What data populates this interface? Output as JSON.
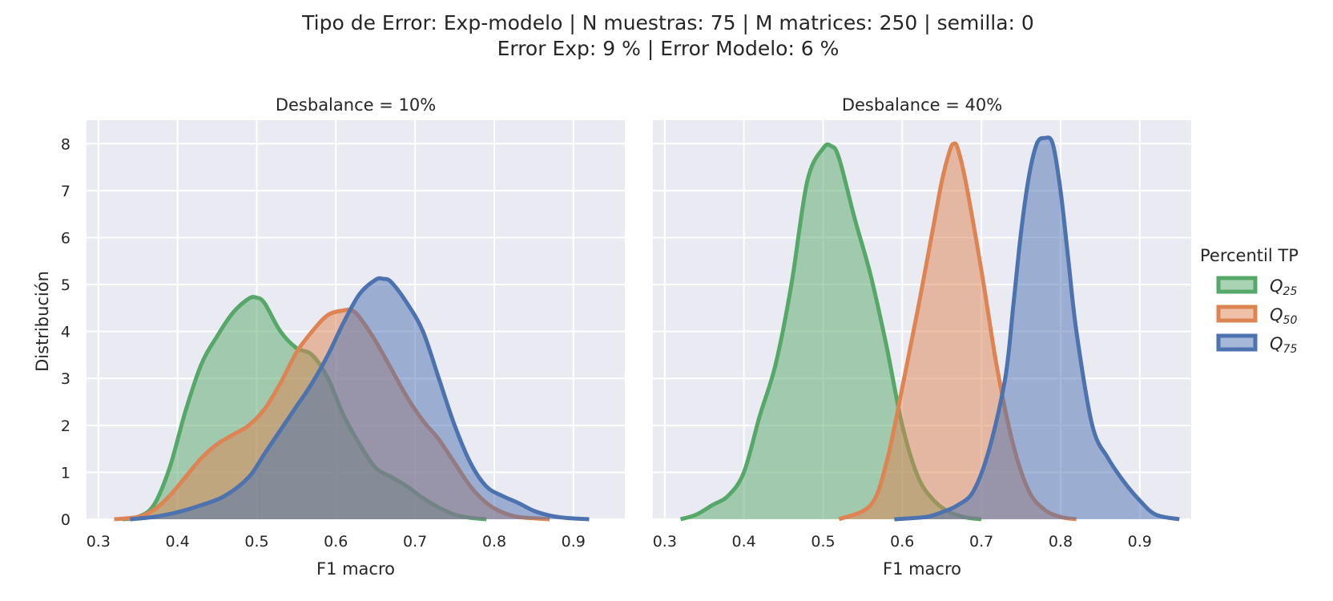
{
  "figure": {
    "title_line1": "Tipo de Error: Exp-modelo | N muestras: 75 | M matrices: 250 | semilla: 0",
    "title_line2": "Error Exp: 9 % | Error Modelo: 6 %"
  },
  "legend": {
    "title": "Percentil TP",
    "entries": [
      {
        "label": "Q",
        "sub": "25",
        "color": "#55a868"
      },
      {
        "label": "Q",
        "sub": "50",
        "color": "#dd8452"
      },
      {
        "label": "Q",
        "sub": "75",
        "color": "#4c72b0"
      }
    ]
  },
  "chart_data": [
    {
      "type": "area",
      "title": "Desbalance = 10%",
      "xlabel": "F1 macro",
      "ylabel": "Distribución",
      "xlim": [
        0.285,
        0.965
      ],
      "ylim": [
        0,
        8.5
      ],
      "xticks": [
        "0.3",
        "0.4",
        "0.5",
        "0.6",
        "0.7",
        "0.8",
        "0.9"
      ],
      "yticks": [
        "0",
        "1",
        "2",
        "3",
        "4",
        "5",
        "6",
        "7",
        "8"
      ],
      "grid": true,
      "series": [
        {
          "name": "Q25",
          "color": "#55a868",
          "x": [
            0.33,
            0.35,
            0.37,
            0.39,
            0.41,
            0.43,
            0.45,
            0.47,
            0.49,
            0.5,
            0.51,
            0.53,
            0.55,
            0.57,
            0.59,
            0.61,
            0.63,
            0.65,
            0.67,
            0.69,
            0.71,
            0.73,
            0.75,
            0.77,
            0.79
          ],
          "y": [
            0.0,
            0.05,
            0.3,
            1.1,
            2.3,
            3.3,
            3.9,
            4.4,
            4.7,
            4.72,
            4.6,
            4.0,
            3.65,
            3.5,
            3.0,
            2.2,
            1.6,
            1.1,
            0.9,
            0.7,
            0.45,
            0.25,
            0.1,
            0.03,
            0.0
          ]
        },
        {
          "name": "Q50",
          "color": "#dd8452",
          "x": [
            0.32,
            0.35,
            0.37,
            0.39,
            0.41,
            0.43,
            0.45,
            0.47,
            0.49,
            0.51,
            0.53,
            0.55,
            0.57,
            0.59,
            0.61,
            0.62,
            0.63,
            0.65,
            0.67,
            0.69,
            0.71,
            0.73,
            0.75,
            0.77,
            0.79,
            0.81,
            0.83,
            0.85,
            0.87
          ],
          "y": [
            0.0,
            0.05,
            0.2,
            0.5,
            0.9,
            1.3,
            1.6,
            1.8,
            2.0,
            2.35,
            2.9,
            3.55,
            4.0,
            4.35,
            4.45,
            4.45,
            4.3,
            3.8,
            3.2,
            2.6,
            2.1,
            1.7,
            1.2,
            0.7,
            0.35,
            0.15,
            0.05,
            0.02,
            0.0
          ]
        },
        {
          "name": "Q75",
          "color": "#4c72b0",
          "x": [
            0.34,
            0.37,
            0.4,
            0.43,
            0.46,
            0.49,
            0.51,
            0.53,
            0.55,
            0.57,
            0.59,
            0.61,
            0.63,
            0.65,
            0.66,
            0.67,
            0.69,
            0.71,
            0.73,
            0.75,
            0.77,
            0.79,
            0.81,
            0.83,
            0.85,
            0.87,
            0.89,
            0.92
          ],
          "y": [
            0.0,
            0.05,
            0.15,
            0.3,
            0.5,
            0.9,
            1.4,
            1.9,
            2.4,
            2.9,
            3.5,
            4.2,
            4.8,
            5.1,
            5.12,
            5.05,
            4.6,
            4.0,
            3.0,
            2.0,
            1.2,
            0.7,
            0.5,
            0.35,
            0.18,
            0.08,
            0.03,
            0.0
          ]
        }
      ]
    },
    {
      "type": "area",
      "title": "Desbalance = 40%",
      "xlabel": "F1 macro",
      "ylabel": "",
      "xlim": [
        0.285,
        0.965
      ],
      "ylim": [
        0,
        8.5
      ],
      "xticks": [
        "0.3",
        "0.4",
        "0.5",
        "0.6",
        "0.7",
        "0.8",
        "0.9"
      ],
      "yticks": [],
      "grid": true,
      "series": [
        {
          "name": "Q25",
          "color": "#55a868",
          "x": [
            0.32,
            0.34,
            0.36,
            0.38,
            0.4,
            0.42,
            0.44,
            0.46,
            0.48,
            0.5,
            0.51,
            0.52,
            0.54,
            0.56,
            0.58,
            0.6,
            0.62,
            0.64,
            0.66,
            0.68,
            0.7
          ],
          "y": [
            0.0,
            0.1,
            0.3,
            0.5,
            1.0,
            2.2,
            3.3,
            5.0,
            7.2,
            7.9,
            7.95,
            7.7,
            6.4,
            5.2,
            3.7,
            2.0,
            0.9,
            0.4,
            0.15,
            0.04,
            0.0
          ]
        },
        {
          "name": "Q50",
          "color": "#dd8452",
          "x": [
            0.52,
            0.56,
            0.58,
            0.6,
            0.62,
            0.64,
            0.65,
            0.66,
            0.665,
            0.67,
            0.68,
            0.7,
            0.72,
            0.74,
            0.76,
            0.78,
            0.8,
            0.82
          ],
          "y": [
            0.0,
            0.3,
            1.2,
            2.8,
            4.5,
            6.3,
            7.2,
            7.85,
            8.0,
            7.9,
            7.2,
            5.3,
            3.2,
            1.6,
            0.6,
            0.2,
            0.05,
            0.0
          ]
        },
        {
          "name": "Q75",
          "color": "#4c72b0",
          "x": [
            0.59,
            0.63,
            0.65,
            0.67,
            0.69,
            0.71,
            0.73,
            0.74,
            0.75,
            0.76,
            0.77,
            0.78,
            0.79,
            0.8,
            0.81,
            0.82,
            0.84,
            0.86,
            0.88,
            0.9,
            0.92,
            0.95
          ],
          "y": [
            0.0,
            0.05,
            0.15,
            0.3,
            0.6,
            1.5,
            3.0,
            4.5,
            6.1,
            7.3,
            8.0,
            8.12,
            8.0,
            7.0,
            5.5,
            4.0,
            2.0,
            1.3,
            0.8,
            0.4,
            0.1,
            0.0
          ]
        }
      ]
    }
  ]
}
